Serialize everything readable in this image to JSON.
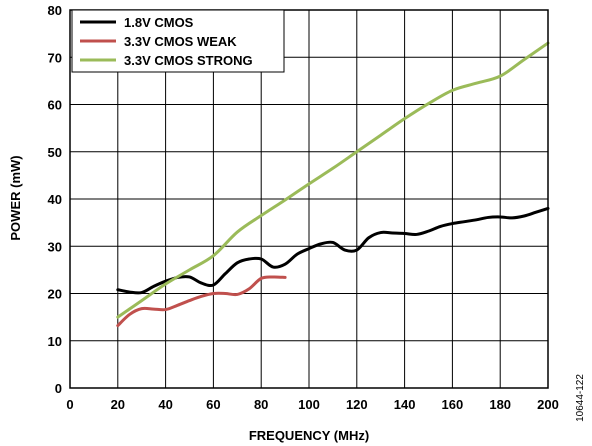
{
  "chart_data": {
    "type": "line",
    "xlabel": "FREQUENCY (MHz)",
    "ylabel": "POWER (mW)",
    "xlim": [
      0,
      200
    ],
    "ylim": [
      0,
      80
    ],
    "xticks": [
      0,
      20,
      40,
      60,
      80,
      100,
      120,
      140,
      160,
      180,
      200
    ],
    "yticks": [
      0,
      10,
      20,
      30,
      40,
      50,
      60,
      70,
      80
    ],
    "grid": true,
    "legend_position": "top-left",
    "series": [
      {
        "name": "1.8V CMOS",
        "color": "#000000",
        "x": [
          20,
          25,
          30,
          35,
          40,
          45,
          50,
          55,
          60,
          65,
          70,
          75,
          80,
          85,
          90,
          95,
          100,
          105,
          110,
          115,
          120,
          125,
          130,
          135,
          140,
          145,
          150,
          155,
          160,
          165,
          170,
          175,
          180,
          185,
          190,
          195,
          200
        ],
        "y": [
          20.8,
          20.3,
          20.2,
          21.5,
          22.6,
          23.4,
          23.5,
          22.2,
          21.8,
          24.2,
          26.5,
          27.3,
          27.3,
          25.6,
          26.2,
          28.3,
          29.5,
          30.5,
          30.8,
          29.2,
          29.2,
          31.8,
          32.9,
          32.8,
          32.7,
          32.5,
          33.2,
          34.2,
          34.8,
          35.2,
          35.6,
          36.1,
          36.2,
          36.0,
          36.4,
          37.2,
          38.0
        ]
      },
      {
        "name": "3.3V CMOS WEAK",
        "color": "#c0504d",
        "x": [
          20,
          25,
          30,
          35,
          40,
          45,
          50,
          55,
          60,
          65,
          70,
          75,
          80,
          85,
          90
        ],
        "y": [
          13.2,
          15.6,
          16.8,
          16.7,
          16.6,
          17.5,
          18.5,
          19.4,
          20.0,
          20.0,
          19.8,
          21.0,
          23.2,
          23.5,
          23.4
        ]
      },
      {
        "name": "3.3V CMOS STRONG",
        "color": "#9bbb59",
        "x": [
          20,
          30,
          40,
          50,
          60,
          70,
          80,
          90,
          100,
          110,
          120,
          130,
          140,
          150,
          160,
          170,
          180,
          190,
          200
        ],
        "y": [
          15.0,
          18.5,
          22.0,
          25.0,
          28.0,
          33.0,
          36.5,
          39.8,
          43.2,
          46.5,
          50.0,
          53.5,
          57.0,
          60.2,
          63.0,
          64.5,
          66.0,
          69.5,
          73.0
        ]
      }
    ]
  },
  "figure_id": "10644-122"
}
